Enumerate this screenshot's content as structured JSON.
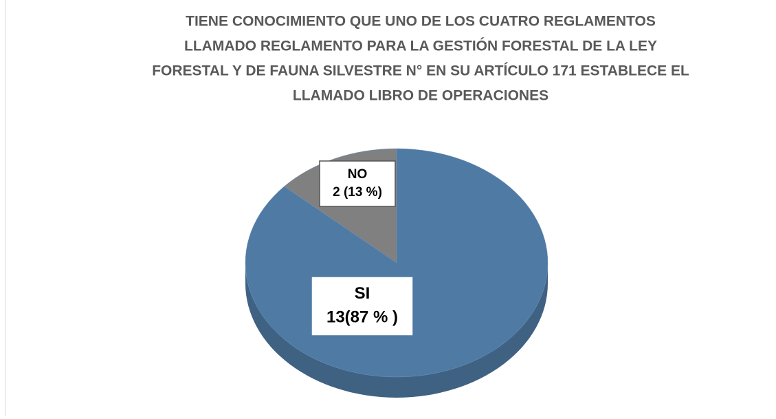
{
  "chart_data": {
    "type": "pie",
    "title": [
      "TIENE CONOCIMIENTO QUE UNO DE LOS CUATRO REGLAMENTOS",
      "LLAMADO REGLAMENTO PARA LA GESTIÓN FORESTAL DE LA LEY",
      "FORESTAL Y DE FAUNA SILVESTRE N° EN SU ARTÍCULO 171 ESTABLECE EL",
      "LLAMADO LIBRO DE OPERACIONES"
    ],
    "categories": [
      "SI",
      "NO"
    ],
    "values": [
      13,
      2
    ],
    "value_labels": [
      "13(87 % )",
      "2 (13 %)"
    ],
    "colors": [
      "#4f7aa4",
      "#808080"
    ]
  }
}
